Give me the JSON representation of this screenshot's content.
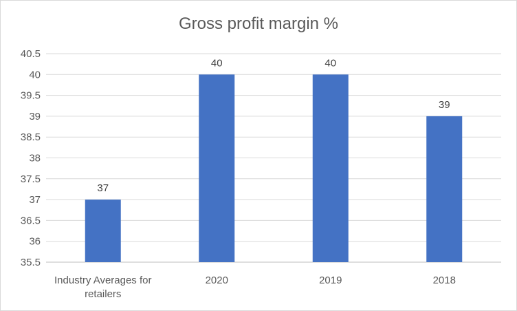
{
  "chart_data": {
    "type": "bar",
    "title": "Gross profit margin %",
    "categories": [
      "Industry Averages for retailers",
      "2020",
      "2019",
      "2018"
    ],
    "category_label_lines": [
      [
        "Industry Averages for",
        "retailers"
      ],
      [
        "2020"
      ],
      [
        "2019"
      ],
      [
        "2018"
      ]
    ],
    "values": [
      37,
      40,
      40,
      39
    ],
    "data_labels": [
      "37",
      "40",
      "40",
      "39"
    ],
    "ylim": [
      35.5,
      40.5
    ],
    "y_ticks": [
      "35.5",
      "36",
      "36.5",
      "37",
      "37.5",
      "38",
      "38.5",
      "39",
      "39.5",
      "40",
      "40.5"
    ],
    "xlabel": "",
    "ylabel": "",
    "grid": true,
    "legend": "none",
    "bar_color": "#4472c4",
    "grid_color": "#d9d9d9"
  }
}
